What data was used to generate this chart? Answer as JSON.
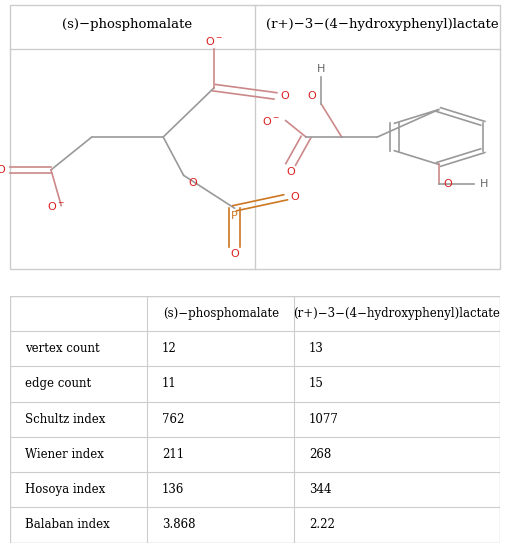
{
  "col1_title": "(s)−phosphomalate",
  "col2_title": "(r+)−3−(4−hydroxyphenyl)lactate",
  "row_labels": [
    "vertex count",
    "edge count",
    "Schultz index",
    "Wiener index",
    "Hosoya index",
    "Balaban index"
  ],
  "col1_values": [
    "12",
    "11",
    "762",
    "211",
    "136",
    "3.868"
  ],
  "col2_values": [
    "13",
    "15",
    "1077",
    "268",
    "344",
    "2.22"
  ],
  "bg_color": "#ffffff",
  "border_color": "#cccccc",
  "text_color": "#000000",
  "header_fontsize": 9.5,
  "cell_fontsize": 9.5,
  "label_color": "#555555",
  "atom_red": "#dd2222",
  "atom_orange": "#cc7722",
  "bond_gray": "#999999",
  "bond_red_light": "#cc8888"
}
